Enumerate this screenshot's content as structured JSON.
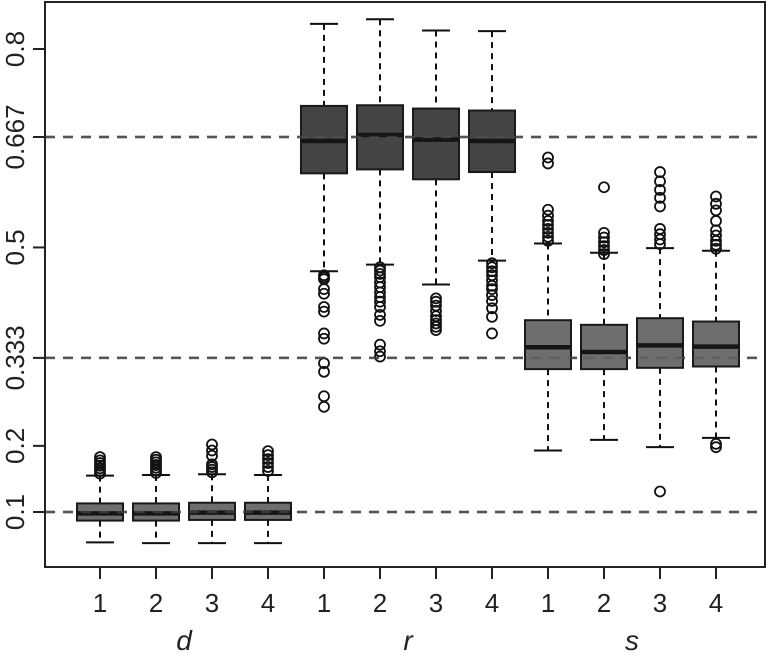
{
  "chart_data": {
    "type": "boxplot",
    "title": "",
    "xlabel": "",
    "ylabel": "",
    "ylim": [
      0.035,
      0.855
    ],
    "y_ticks": [
      {
        "value": 0.1,
        "label": "0.1"
      },
      {
        "value": 0.2,
        "label": "0.2"
      },
      {
        "value": 0.333,
        "label": "0.333"
      },
      {
        "value": 0.5,
        "label": "0.5"
      },
      {
        "value": 0.667,
        "label": "0.667"
      },
      {
        "value": 0.8,
        "label": "0.8"
      }
    ],
    "reference_lines": [
      0.1,
      0.333,
      0.667
    ],
    "groups": [
      {
        "label": "d",
        "categories": [
          "1",
          "2",
          "3",
          "4"
        ]
      },
      {
        "label": "r",
        "categories": [
          "1",
          "2",
          "3",
          "4"
        ]
      },
      {
        "label": "s",
        "categories": [
          "1",
          "2",
          "3",
          "4"
        ]
      }
    ],
    "colors": {
      "d": "#6e6e6e",
      "r": "#444444",
      "s": "#6e6e6e",
      "reference_line": "#555555",
      "axis": "#222222"
    },
    "boxes": [
      {
        "group": "d",
        "category": "1",
        "whisker_low": 0.054,
        "q1": 0.087,
        "median": 0.098,
        "q3": 0.113,
        "whisker_high": 0.155,
        "outliers": [
          0.158,
          0.162,
          0.166,
          0.17,
          0.174,
          0.178,
          0.183
        ]
      },
      {
        "group": "d",
        "category": "2",
        "whisker_low": 0.053,
        "q1": 0.087,
        "median": 0.098,
        "q3": 0.113,
        "whisker_high": 0.156,
        "outliers": [
          0.159,
          0.163,
          0.167,
          0.171,
          0.175,
          0.179,
          0.183
        ]
      },
      {
        "group": "d",
        "category": "3",
        "whisker_low": 0.053,
        "q1": 0.088,
        "median": 0.099,
        "q3": 0.114,
        "whisker_high": 0.157,
        "outliers": [
          0.16,
          0.164,
          0.168,
          0.172,
          0.185,
          0.193,
          0.202
        ]
      },
      {
        "group": "d",
        "category": "4",
        "whisker_low": 0.053,
        "q1": 0.088,
        "median": 0.099,
        "q3": 0.114,
        "whisker_high": 0.156,
        "outliers": [
          0.162,
          0.168,
          0.174,
          0.18,
          0.186,
          0.192
        ]
      },
      {
        "group": "r",
        "category": "1",
        "whisker_low": 0.464,
        "q1": 0.612,
        "median": 0.661,
        "q3": 0.714,
        "whisker_high": 0.838,
        "outliers": [
          0.452,
          0.455,
          0.458,
          0.437,
          0.43,
          0.41,
          0.403,
          0.37,
          0.362,
          0.325,
          0.312,
          0.275,
          0.259
        ]
      },
      {
        "group": "r",
        "category": "2",
        "whisker_low": 0.474,
        "q1": 0.618,
        "median": 0.67,
        "q3": 0.715,
        "whisker_high": 0.845,
        "outliers": [
          0.47,
          0.465,
          0.46,
          0.455,
          0.447,
          0.44,
          0.432,
          0.425,
          0.418,
          0.41,
          0.398,
          0.389,
          0.353,
          0.343,
          0.335
        ]
      },
      {
        "group": "r",
        "category": "3",
        "whisker_low": 0.444,
        "q1": 0.603,
        "median": 0.663,
        "q3": 0.71,
        "whisker_high": 0.828,
        "outliers": [
          0.423,
          0.418,
          0.412,
          0.404,
          0.396,
          0.39,
          0.385,
          0.38,
          0.375
        ]
      },
      {
        "group": "r",
        "category": "4",
        "whisker_low": 0.48,
        "q1": 0.614,
        "median": 0.661,
        "q3": 0.707,
        "whisker_high": 0.827,
        "outliers": [
          0.476,
          0.47,
          0.464,
          0.458,
          0.45,
          0.442,
          0.437,
          0.428,
          0.419,
          0.408,
          0.395,
          0.37
        ]
      },
      {
        "group": "s",
        "category": "1",
        "whisker_low": 0.193,
        "q1": 0.316,
        "median": 0.349,
        "q3": 0.39,
        "whisker_high": 0.506,
        "outliers": [
          0.51,
          0.516,
          0.522,
          0.528,
          0.534,
          0.54,
          0.548,
          0.557,
          0.627,
          0.636
        ]
      },
      {
        "group": "s",
        "category": "2",
        "whisker_low": 0.209,
        "q1": 0.316,
        "median": 0.342,
        "q3": 0.383,
        "whisker_high": 0.492,
        "outliers": [
          0.49,
          0.496,
          0.502,
          0.508,
          0.515,
          0.522,
          0.591
        ]
      },
      {
        "group": "s",
        "category": "3",
        "whisker_low": 0.198,
        "q1": 0.318,
        "median": 0.352,
        "q3": 0.393,
        "whisker_high": 0.499,
        "outliers": [
          0.505,
          0.512,
          0.52,
          0.528,
          0.562,
          0.575,
          0.587,
          0.6,
          0.614,
          0.131
        ]
      },
      {
        "group": "s",
        "category": "4",
        "whisker_low": 0.212,
        "q1": 0.32,
        "median": 0.35,
        "q3": 0.388,
        "whisker_high": 0.495,
        "outliers": [
          0.498,
          0.504,
          0.51,
          0.518,
          0.526,
          0.54,
          0.556,
          0.566,
          0.577,
          0.198,
          0.203
        ]
      }
    ]
  }
}
